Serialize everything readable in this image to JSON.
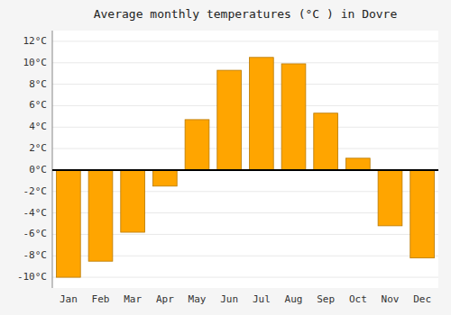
{
  "chart_data": {
    "type": "bar",
    "title": "Average monthly temperatures (°C ) in Dovre",
    "categories": [
      "Jan",
      "Feb",
      "Mar",
      "Apr",
      "May",
      "Jun",
      "Jul",
      "Aug",
      "Sep",
      "Oct",
      "Nov",
      "Dec"
    ],
    "values": [
      -10,
      -8.5,
      -5.8,
      -1.5,
      4.7,
      9.3,
      10.5,
      9.9,
      5.3,
      1.1,
      -5.2,
      -8.2
    ],
    "color": "#FFA500",
    "ylim": [
      -11,
      13
    ],
    "yticks": [
      {
        "value": -10,
        "label": "-10°C"
      },
      {
        "value": -8,
        "label": "-8°C"
      },
      {
        "value": -6,
        "label": "-6°C"
      },
      {
        "value": -4,
        "label": "-4°C"
      },
      {
        "value": -2,
        "label": "-2°C"
      },
      {
        "value": 0,
        "label": "0°C"
      },
      {
        "value": 2,
        "label": "2°C"
      },
      {
        "value": 4,
        "label": "4°C"
      },
      {
        "value": 6,
        "label": "6°C"
      },
      {
        "value": 8,
        "label": "8°C"
      },
      {
        "value": 10,
        "label": "10°C"
      },
      {
        "value": 12,
        "label": "12°C"
      }
    ],
    "grid": true
  }
}
